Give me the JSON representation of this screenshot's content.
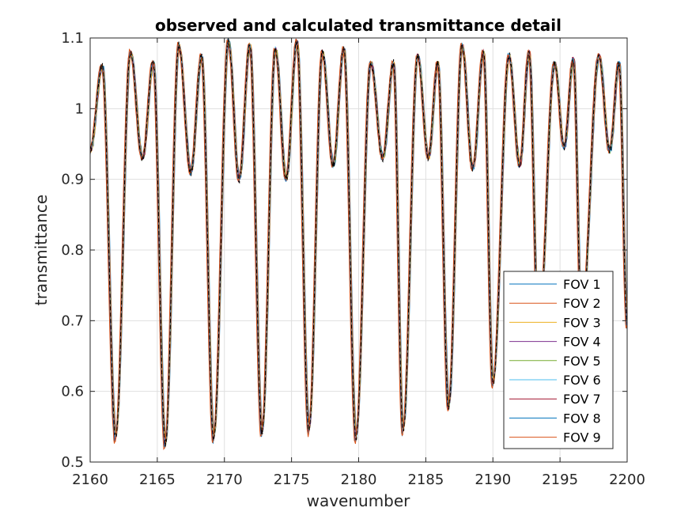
{
  "chart_data": {
    "type": "line",
    "title": "observed and calculated transmittance detail",
    "xlabel": "wavenumber",
    "ylabel": "transmittance",
    "xlim": [
      2160,
      2200
    ],
    "ylim": [
      0.5,
      1.1
    ],
    "xticks": [
      2160,
      2165,
      2170,
      2175,
      2180,
      2185,
      2190,
      2195,
      2200
    ],
    "yticks": [
      0.5,
      0.6,
      0.7,
      0.8,
      0.9,
      1,
      1.1
    ],
    "xtick_labels": [
      "2160",
      "2165",
      "2170",
      "2175",
      "2180",
      "2185",
      "2190",
      "2195",
      "2200"
    ],
    "ytick_labels": [
      "0.5",
      "0.6",
      "0.7",
      "0.8",
      "0.9",
      "1",
      "1.1"
    ],
    "grid": true,
    "legend_position": "bottom-right",
    "absorption_lines": [
      {
        "x": 2161.9,
        "y": 0.535
      },
      {
        "x": 2165.6,
        "y": 0.525
      },
      {
        "x": 2169.2,
        "y": 0.535
      },
      {
        "x": 2172.8,
        "y": 0.542
      },
      {
        "x": 2176.3,
        "y": 0.545
      },
      {
        "x": 2179.8,
        "y": 0.535
      },
      {
        "x": 2183.3,
        "y": 0.545
      },
      {
        "x": 2186.7,
        "y": 0.578
      },
      {
        "x": 2190.0,
        "y": 0.612
      },
      {
        "x": 2193.4,
        "y": 0.68
      },
      {
        "x": 2196.6,
        "y": 0.7
      }
    ],
    "peaks": [
      {
        "x": 2160.9,
        "y": 1.06
      },
      {
        "x": 2163.0,
        "y": 1.08
      },
      {
        "x": 2164.7,
        "y": 1.065
      },
      {
        "x": 2166.6,
        "y": 1.09
      },
      {
        "x": 2168.3,
        "y": 1.075
      },
      {
        "x": 2170.3,
        "y": 1.095
      },
      {
        "x": 2171.9,
        "y": 1.09
      },
      {
        "x": 2173.8,
        "y": 1.085
      },
      {
        "x": 2175.4,
        "y": 1.095
      },
      {
        "x": 2177.3,
        "y": 1.08
      },
      {
        "x": 2178.9,
        "y": 1.085
      },
      {
        "x": 2180.9,
        "y": 1.065
      },
      {
        "x": 2182.6,
        "y": 1.065
      },
      {
        "x": 2184.4,
        "y": 1.075
      },
      {
        "x": 2185.9,
        "y": 1.065
      },
      {
        "x": 2187.7,
        "y": 1.09
      },
      {
        "x": 2189.3,
        "y": 1.08
      },
      {
        "x": 2191.2,
        "y": 1.075
      },
      {
        "x": 2192.7,
        "y": 1.08
      },
      {
        "x": 2194.6,
        "y": 1.065
      },
      {
        "x": 2196.0,
        "y": 1.07
      },
      {
        "x": 2197.9,
        "y": 1.075
      },
      {
        "x": 2199.4,
        "y": 1.065
      }
    ],
    "local_minima": [
      {
        "x": 2160.0,
        "y": 0.94
      },
      {
        "x": 2163.9,
        "y": 0.93
      },
      {
        "x": 2167.5,
        "y": 0.91
      },
      {
        "x": 2171.1,
        "y": 0.9
      },
      {
        "x": 2174.6,
        "y": 0.9
      },
      {
        "x": 2178.1,
        "y": 0.92
      },
      {
        "x": 2181.8,
        "y": 0.93
      },
      {
        "x": 2185.2,
        "y": 0.93
      },
      {
        "x": 2188.5,
        "y": 0.915
      },
      {
        "x": 2192.0,
        "y": 0.92
      },
      {
        "x": 2195.3,
        "y": 0.945
      },
      {
        "x": 2198.7,
        "y": 0.94
      }
    ],
    "series": [
      {
        "name": "FOV 1",
        "color": "#0072bd"
      },
      {
        "name": "FOV 2",
        "color": "#d95319"
      },
      {
        "name": "FOV 3",
        "color": "#edb120"
      },
      {
        "name": "FOV 4",
        "color": "#7e2f8e"
      },
      {
        "name": "FOV 5",
        "color": "#77ac30"
      },
      {
        "name": "FOV 6",
        "color": "#4dbeee"
      },
      {
        "name": "FOV 7",
        "color": "#a2142f"
      },
      {
        "name": "FOV 8",
        "color": "#0072bd"
      },
      {
        "name": "FOV 9",
        "color": "#d95319"
      }
    ],
    "observed_color": "#000000"
  }
}
